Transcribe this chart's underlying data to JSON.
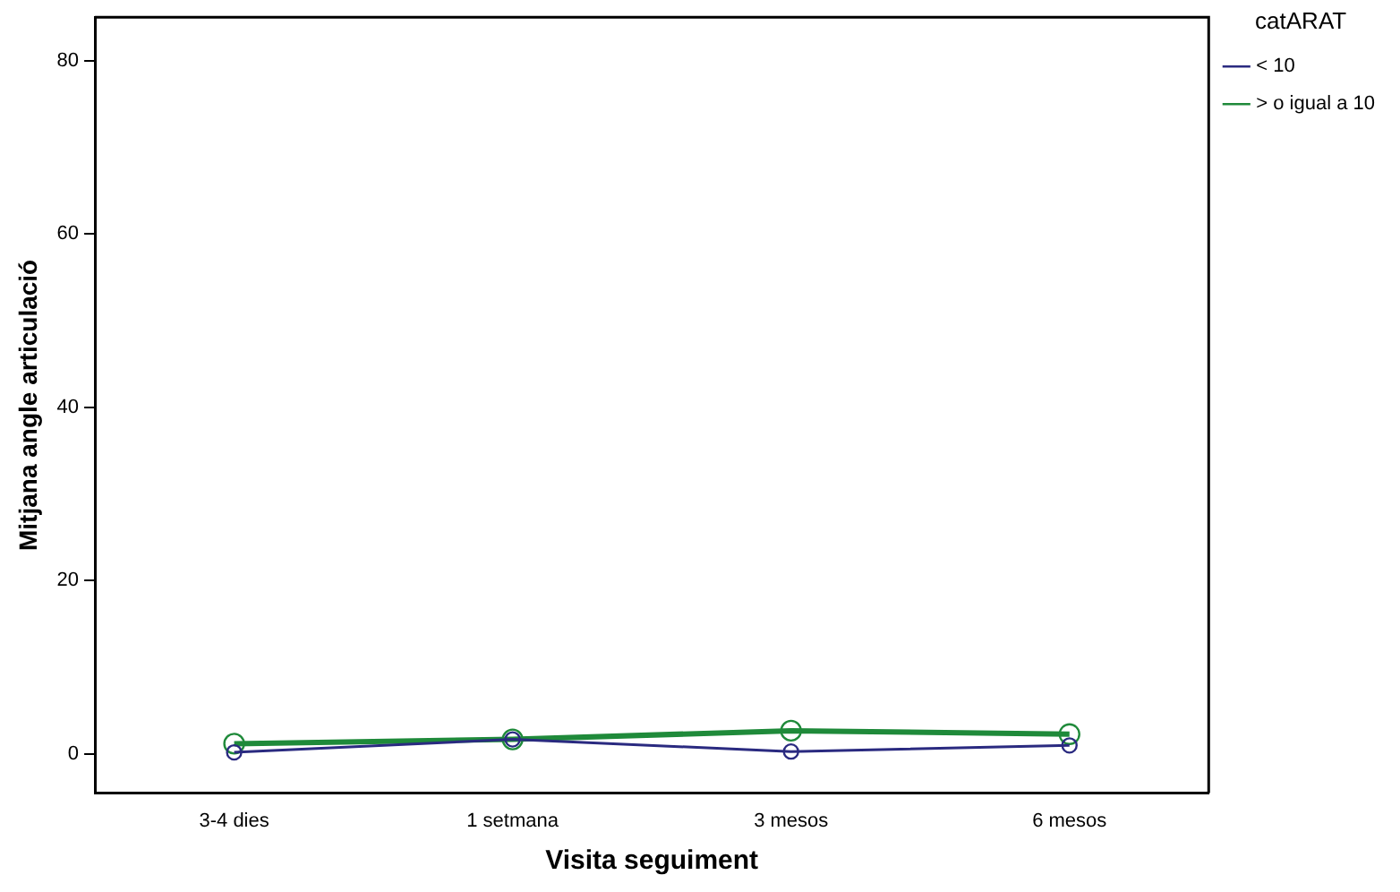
{
  "chart_data": {
    "type": "line",
    "xlabel": "Visita seguiment",
    "ylabel": "Mitjana angle articulació",
    "legend_title": "catARAT",
    "categories": [
      "3-4 dies",
      "1 setmana",
      "3 mesos",
      "6 mesos"
    ],
    "series": [
      {
        "name": "< 10",
        "color": "#2a2a80",
        "values": [
          0.2,
          1.7,
          0.3,
          1.0
        ]
      },
      {
        "name": "> o igual a 10",
        "color": "#1f8a3a",
        "values": [
          1.2,
          1.7,
          2.7,
          2.3
        ]
      }
    ],
    "ylim": [
      -4.5,
      85
    ],
    "yticks": [
      0,
      20,
      40,
      60,
      80
    ],
    "grid": false,
    "legend": "top right",
    "marker": "circle",
    "line_style": "solid"
  }
}
